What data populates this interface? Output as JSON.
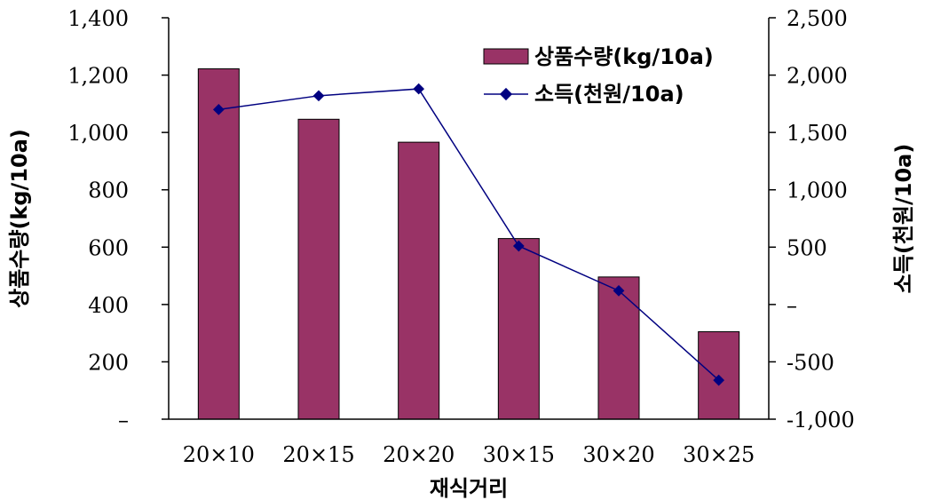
{
  "chart_data": {
    "type": "bar+line",
    "categories": [
      "20×10",
      "20×15",
      "20×20",
      "30×15",
      "30×20",
      "30×25"
    ],
    "series": [
      {
        "name": "상품수량(kg/10a)",
        "type": "bar",
        "axis": "left",
        "values": [
          1222,
          1046,
          966,
          630,
          496,
          305
        ]
      },
      {
        "name": "소득(천원/10a)",
        "type": "line",
        "axis": "right",
        "values": [
          1700,
          1820,
          1880,
          510,
          120,
          -660
        ]
      }
    ],
    "xlabel": "재식거리",
    "ylabel": "상품수량(kg/10a)",
    "y2label": "소득(천원/10a)",
    "ylim": [
      0,
      1400
    ],
    "y2lim": [
      -1000,
      2500
    ],
    "yticks": [
      "–",
      "200",
      "400",
      "600",
      "800",
      "1,000",
      "1,200",
      "1,400"
    ],
    "y2ticks": [
      "-1,000",
      "-500",
      "–",
      "500",
      "1,000",
      "1,500",
      "2,000",
      "2,500"
    ],
    "legend_position": "top-right",
    "grid": false,
    "colors": {
      "bar_fill": "#993366",
      "bar_stroke": "#000000",
      "line": "#000080"
    }
  }
}
